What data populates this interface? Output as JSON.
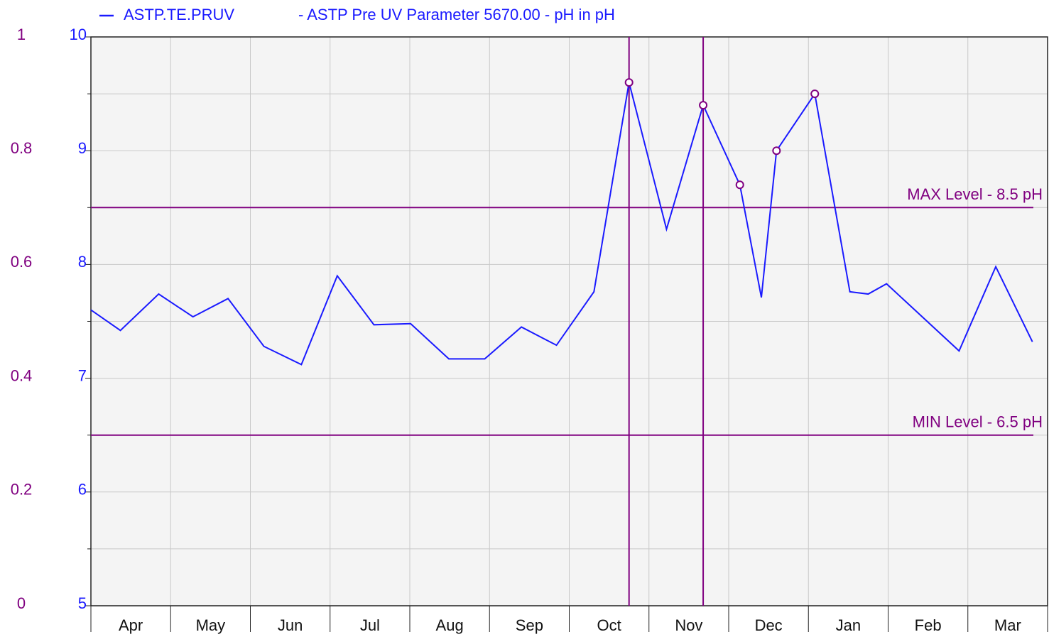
{
  "chart_data": {
    "type": "line",
    "legend_text": "- ASTP Pre UV Parameter 5670.00 - pH in pH",
    "categories": [
      "Apr",
      "May",
      "Jun",
      "Jul",
      "Aug",
      "Sep",
      "Oct",
      "Nov",
      "Dec",
      "Jan",
      "Feb",
      "Mar"
    ],
    "xlim": [
      0,
      12
    ],
    "x": [
      0,
      0.37,
      0.85,
      1.28,
      1.72,
      2.17,
      2.64,
      3.09,
      3.55,
      4.01,
      4.49,
      4.94,
      5.4,
      5.84,
      6.31,
      6.75,
      7.22,
      7.68,
      8.14,
      8.41,
      8.6,
      9.08,
      9.52,
      9.75,
      9.98,
      10.89,
      11.35,
      11.81
    ],
    "series": [
      {
        "name": "ASTP.TE.PRUV",
        "color": "#1a1aff",
        "values": [
          7.6,
          7.42,
          7.74,
          7.54,
          7.7,
          7.28,
          7.12,
          7.9,
          7.47,
          7.48,
          7.17,
          7.17,
          7.45,
          7.29,
          7.76,
          9.6,
          8.31,
          9.4,
          8.7,
          7.71,
          9.0,
          9.5,
          7.76,
          7.74,
          7.83,
          7.24,
          7.98,
          7.32
        ]
      }
    ],
    "ylim": [
      5,
      10
    ],
    "yticks": [
      5,
      6,
      7,
      8,
      9,
      10
    ],
    "yminor": [
      5.5,
      6.5,
      7.5,
      8.5,
      9.5
    ],
    "y2lim": [
      0,
      1
    ],
    "y2ticks": [
      0,
      0.2,
      0.4,
      0.6,
      0.8,
      1
    ],
    "levels": [
      {
        "label": "MAX Level - 8.5 pH",
        "value": 8.5
      },
      {
        "label": "MIN Level - 6.5 pH",
        "value": 6.5
      }
    ],
    "level_color": "#800080",
    "highlight_points": [
      15,
      17
    ],
    "grid": true
  }
}
